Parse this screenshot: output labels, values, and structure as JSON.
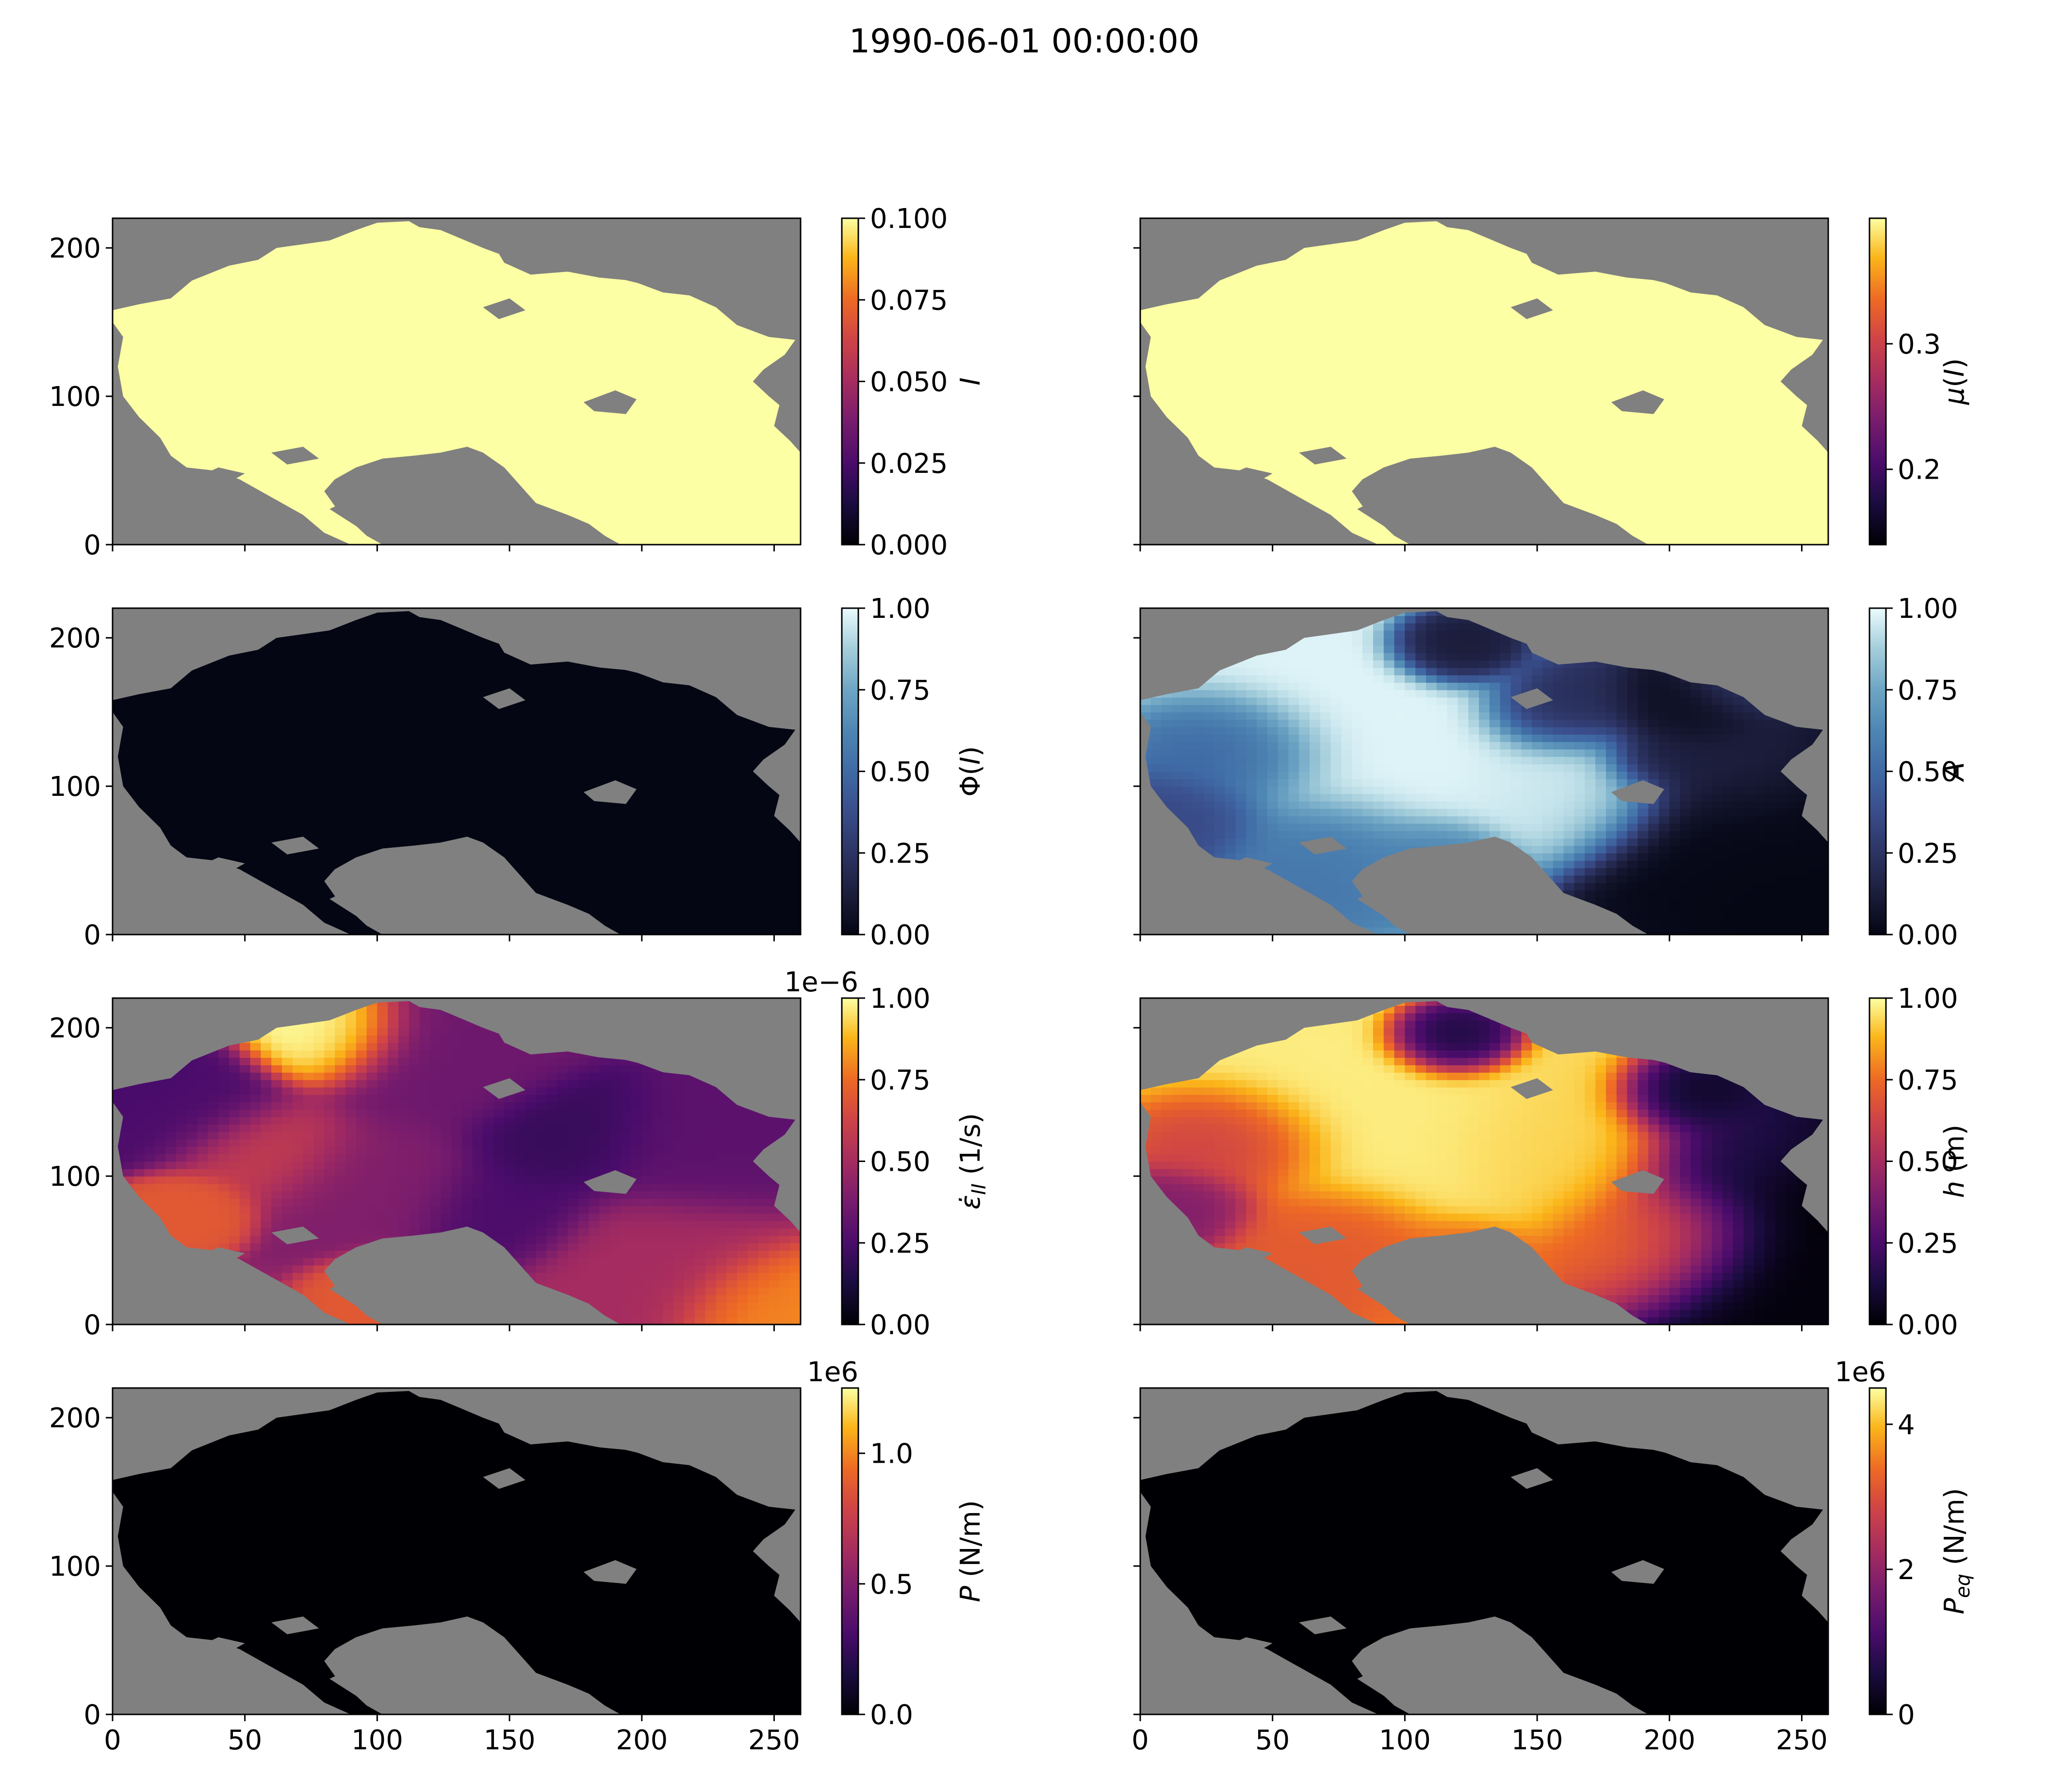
{
  "figure": {
    "title": "1990-06-01 00:00:00"
  },
  "chart_data": [
    {
      "type": "heatmap",
      "panel": "row1-left",
      "colormap": "inferno",
      "colorbar": {
        "label": "I",
        "label_math": "I",
        "range": [
          0,
          0.1
        ],
        "ticks": [
          "0.000",
          "0.025",
          "0.050",
          "0.075",
          "0.100"
        ],
        "tick_values": [
          0,
          0.025,
          0.05,
          0.075,
          0.1
        ],
        "offset": ""
      },
      "field": "uniform-high",
      "value_over_ice": 0.1,
      "xlim": [
        0,
        260
      ],
      "ylim": [
        0,
        220
      ],
      "x_ticks": [
        0,
        50,
        100,
        150,
        200,
        250
      ],
      "y_ticks": [
        0,
        100,
        200
      ],
      "show_x_labels": false,
      "show_y_labels": true,
      "land_color": "#808080"
    },
    {
      "type": "heatmap",
      "panel": "row1-right",
      "colormap": "inferno",
      "colorbar": {
        "label": "μ(I)",
        "label_math": "mu",
        "range": [
          0.14,
          0.4
        ],
        "ticks": [
          "0.2",
          "0.3"
        ],
        "tick_values": [
          0.2,
          0.3
        ],
        "offset": ""
      },
      "field": "uniform-high",
      "value_over_ice": 0.4,
      "xlim": [
        0,
        260
      ],
      "ylim": [
        0,
        220
      ],
      "x_ticks": [
        0,
        50,
        100,
        150,
        200,
        250
      ],
      "y_ticks": [
        0,
        100,
        200
      ],
      "show_x_labels": false,
      "show_y_labels": false,
      "land_color": "#808080"
    },
    {
      "type": "heatmap",
      "panel": "row2-left",
      "colormap": "ice",
      "colorbar": {
        "label": "Φ(I)",
        "label_math": "phi",
        "range": [
          0,
          1
        ],
        "ticks": [
          "0.00",
          "0.25",
          "0.50",
          "0.75",
          "1.00"
        ],
        "tick_values": [
          0,
          0.25,
          0.5,
          0.75,
          1
        ],
        "offset": ""
      },
      "field": "uniform-low",
      "value_over_ice": 0.0,
      "xlim": [
        0,
        260
      ],
      "ylim": [
        0,
        220
      ],
      "x_ticks": [
        0,
        50,
        100,
        150,
        200,
        250
      ],
      "y_ticks": [
        0,
        100,
        200
      ],
      "show_x_labels": false,
      "show_y_labels": true,
      "land_color": "#808080"
    },
    {
      "type": "heatmap",
      "panel": "row2-right",
      "colormap": "ice",
      "colorbar": {
        "label": "A",
        "label_math": "A",
        "range": [
          0,
          1
        ],
        "ticks": [
          "0.00",
          "0.25",
          "0.50",
          "0.75",
          "1.00"
        ],
        "tick_values": [
          0,
          0.25,
          0.5,
          0.75,
          1
        ],
        "offset": ""
      },
      "field": "concentration",
      "xlim": [
        0,
        260
      ],
      "ylim": [
        0,
        220
      ],
      "x_ticks": [
        0,
        50,
        100,
        150,
        200,
        250
      ],
      "y_ticks": [
        0,
        100,
        200
      ],
      "show_x_labels": false,
      "show_y_labels": false,
      "land_color": "#808080"
    },
    {
      "type": "heatmap",
      "panel": "row3-left",
      "colormap": "inferno",
      "colorbar": {
        "label": "ε̇_II (1/s)",
        "label_math": "eps",
        "range": [
          0,
          1
        ],
        "ticks": [
          "0.00",
          "0.25",
          "0.50",
          "0.75",
          "1.00"
        ],
        "tick_values": [
          0,
          0.25,
          0.5,
          0.75,
          1
        ],
        "offset": "1e−6"
      },
      "field": "strain",
      "xlim": [
        0,
        260
      ],
      "ylim": [
        0,
        220
      ],
      "x_ticks": [
        0,
        50,
        100,
        150,
        200,
        250
      ],
      "y_ticks": [
        0,
        100,
        200
      ],
      "show_x_labels": false,
      "show_y_labels": true,
      "land_color": "#808080"
    },
    {
      "type": "heatmap",
      "panel": "row3-right",
      "colormap": "inferno",
      "colorbar": {
        "label": "h (m)",
        "label_math": "h",
        "range": [
          0,
          1
        ],
        "ticks": [
          "0.00",
          "0.25",
          "0.50",
          "0.75",
          "1.00"
        ],
        "tick_values": [
          0,
          0.25,
          0.5,
          0.75,
          1
        ],
        "offset": ""
      },
      "field": "thickness",
      "xlim": [
        0,
        260
      ],
      "ylim": [
        0,
        220
      ],
      "x_ticks": [
        0,
        50,
        100,
        150,
        200,
        250
      ],
      "y_ticks": [
        0,
        100,
        200
      ],
      "show_x_labels": false,
      "show_y_labels": false,
      "land_color": "#808080"
    },
    {
      "type": "heatmap",
      "panel": "row4-left",
      "colormap": "inferno",
      "colorbar": {
        "label": "P (N/m)",
        "label_math": "P",
        "range": [
          0,
          1.25
        ],
        "ticks": [
          "0.0",
          "0.5",
          "1.0"
        ],
        "tick_values": [
          0,
          0.5,
          1.0
        ],
        "offset": "1e6"
      },
      "field": "uniform-low",
      "value_over_ice": 0.0,
      "xlim": [
        0,
        260
      ],
      "ylim": [
        0,
        220
      ],
      "x_ticks": [
        0,
        50,
        100,
        150,
        200,
        250
      ],
      "y_ticks": [
        0,
        100,
        200
      ],
      "show_x_labels": true,
      "show_y_labels": true,
      "land_color": "#808080"
    },
    {
      "type": "heatmap",
      "panel": "row4-right",
      "colormap": "inferno",
      "colorbar": {
        "label": "P_eq (N/m)",
        "label_math": "Peq",
        "range": [
          0,
          4.5
        ],
        "ticks": [
          "0",
          "2",
          "4"
        ],
        "tick_values": [
          0,
          2,
          4
        ],
        "offset": "1e6"
      },
      "field": "uniform-low",
      "value_over_ice": 0.0,
      "xlim": [
        0,
        260
      ],
      "ylim": [
        0,
        220
      ],
      "x_ticks": [
        0,
        50,
        100,
        150,
        200,
        250
      ],
      "y_ticks": [
        0,
        100,
        200
      ],
      "show_x_labels": true,
      "show_y_labels": false,
      "land_color": "#808080"
    }
  ]
}
